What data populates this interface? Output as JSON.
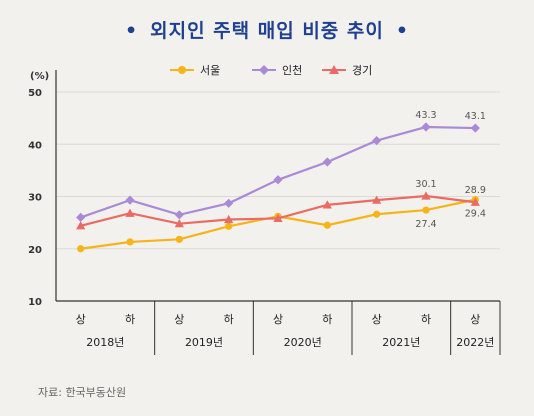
{
  "title": "외지인 주택 매입 비중 추이",
  "title_dot": "•",
  "source": "자료: 한국부동산원",
  "colors": {
    "axis": "#333333",
    "grid": "#dcdad6",
    "label": "#555555"
  },
  "chart_data": {
    "type": "line",
    "unit_label": "(%)",
    "categories": [
      "상",
      "하",
      "상",
      "하",
      "상",
      "하",
      "상",
      "하",
      "상"
    ],
    "years": [
      {
        "label": "2018년",
        "span": 2
      },
      {
        "label": "2019년",
        "span": 2
      },
      {
        "label": "2020년",
        "span": 2
      },
      {
        "label": "2021년",
        "span": 2
      },
      {
        "label": "2022년",
        "span": 1
      }
    ],
    "ylim": [
      10,
      50
    ],
    "yticks": [
      10,
      20,
      30,
      40,
      50
    ],
    "grid": true,
    "legend_position": "top-center",
    "series": [
      {
        "name": "서울",
        "color": "#f5b417",
        "marker": "circle",
        "values": [
          20.0,
          21.3,
          21.8,
          24.3,
          26.2,
          24.5,
          26.6,
          27.4,
          29.4
        ]
      },
      {
        "name": "인천",
        "color": "#a98ad6",
        "marker": "diamond",
        "values": [
          26.0,
          29.3,
          26.5,
          28.7,
          33.2,
          36.6,
          40.7,
          43.3,
          43.1
        ]
      },
      {
        "name": "경기",
        "color": "#e96b63",
        "marker": "triangle",
        "values": [
          24.4,
          26.8,
          24.8,
          25.6,
          25.8,
          28.4,
          29.3,
          30.1,
          28.9
        ]
      }
    ],
    "data_labels": [
      {
        "series": 1,
        "index": 7,
        "text": "43.3",
        "pos": "above"
      },
      {
        "series": 1,
        "index": 8,
        "text": "43.1",
        "pos": "above"
      },
      {
        "series": 2,
        "index": 7,
        "text": "30.1",
        "pos": "above"
      },
      {
        "series": 2,
        "index": 8,
        "text": "28.9",
        "pos": "above"
      },
      {
        "series": 0,
        "index": 7,
        "text": "27.4",
        "pos": "below"
      },
      {
        "series": 0,
        "index": 8,
        "text": "29.4",
        "pos": "below"
      }
    ]
  }
}
